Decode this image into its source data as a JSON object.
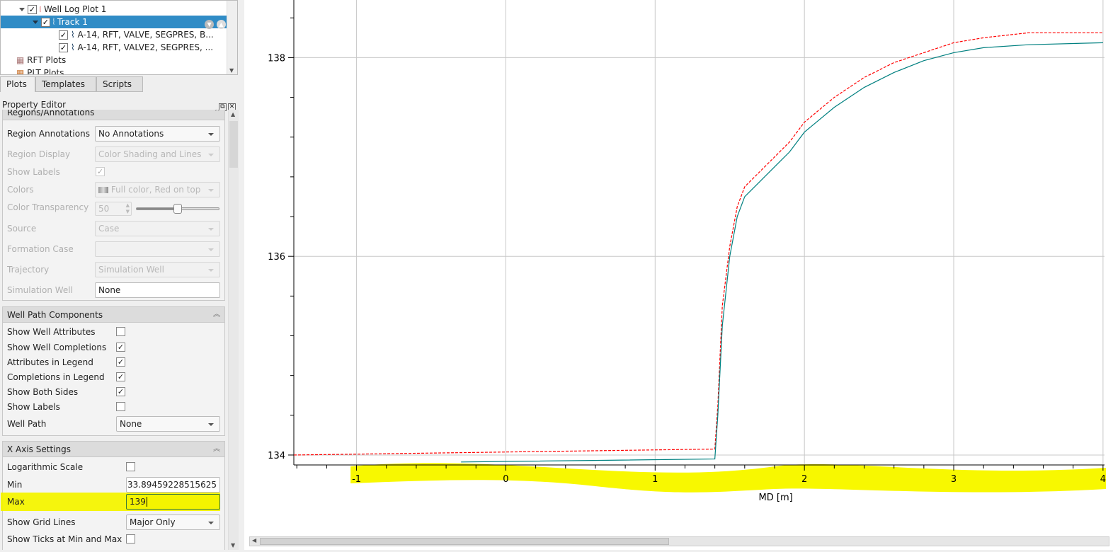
{
  "tree": {
    "items": [
      {
        "label": "Well Log Plot 1",
        "checked": true,
        "expanded": true,
        "icon": "well-log-plot-icon"
      },
      {
        "label": "Track 1",
        "checked": true,
        "expanded": true,
        "selected": true,
        "icon": "track-icon"
      },
      {
        "label": "A-14, RFT, VALVE, SEGPRES, B...",
        "checked": true,
        "icon": "curve-icon"
      },
      {
        "label": "A-14, RFT, VALVE2, SEGPRES, ...",
        "checked": true,
        "icon": "curve-icon"
      },
      {
        "label": "RFT Plots",
        "icon": "rft-plots-icon"
      },
      {
        "label": "PLT Plots",
        "icon": "plt-plots-icon"
      }
    ]
  },
  "tabs": [
    {
      "label": "Plots",
      "active": true
    },
    {
      "label": "Templates"
    },
    {
      "label": "Scripts"
    }
  ],
  "property_editor": {
    "title": "Property Editor",
    "regions": {
      "title": "Regions/Annotations",
      "region_annotations": {
        "label": "Region Annotations",
        "value": "No Annotations"
      },
      "region_display": {
        "label": "Region Display",
        "value": "Color Shading and Lines"
      },
      "show_labels": {
        "label": "Show Labels",
        "checked": true
      },
      "colors": {
        "label": "Colors",
        "value": "Full color, Red on top"
      },
      "color_transparency": {
        "label": "Color Transparency",
        "value": "50",
        "slider_percent": 50
      },
      "source": {
        "label": "Source",
        "value": "Case"
      },
      "formation_case": {
        "label": "Formation Case",
        "value": ""
      },
      "trajectory": {
        "label": "Trajectory",
        "value": "Simulation Well"
      },
      "simulation_well": {
        "label": "Simulation Well",
        "value": "None"
      }
    },
    "well_path": {
      "title": "Well Path Components",
      "rows": [
        {
          "label": "Show Well Attributes",
          "checked": false
        },
        {
          "label": "Show Well Completions",
          "checked": true
        },
        {
          "label": "Attributes in Legend",
          "checked": true
        },
        {
          "label": "Completions in Legend",
          "checked": true
        },
        {
          "label": "Show Both Sides",
          "checked": true
        },
        {
          "label": "Show Labels",
          "checked": false
        }
      ],
      "well_path": {
        "label": "Well Path",
        "value": "None"
      }
    },
    "x_axis": {
      "title": "X Axis Settings",
      "log_scale": {
        "label": "Logarithmic Scale",
        "checked": false
      },
      "min": {
        "label": "Min",
        "value": "33.89459228515625"
      },
      "max": {
        "label": "Max",
        "value": "139"
      },
      "grid": {
        "label": "Show Grid Lines",
        "value": "Major Only"
      },
      "ticks_minmax": {
        "label": "Show Ticks at Min and Max",
        "checked": false
      }
    }
  },
  "chart_data": {
    "type": "line",
    "xlabel": "MD [m]",
    "ylabel": "",
    "xlim": [
      -1.42,
      4.01
    ],
    "ylim": [
      133.9,
      138.58
    ],
    "xticks": [
      "-1",
      "0",
      "1",
      "2",
      "3",
      "4"
    ],
    "yticks": [
      "134",
      "136",
      "138"
    ],
    "grid": "major",
    "series": [
      {
        "color": "#ff0000",
        "style": "dashed",
        "points": [
          [
            -1.42,
            134.0
          ],
          [
            1.4,
            134.06
          ],
          [
            1.42,
            134.5
          ],
          [
            1.45,
            135.5
          ],
          [
            1.5,
            136.1
          ],
          [
            1.55,
            136.5
          ],
          [
            1.6,
            136.7
          ],
          [
            1.7,
            136.85
          ],
          [
            1.8,
            137.0
          ],
          [
            1.9,
            137.15
          ],
          [
            2.0,
            137.35
          ],
          [
            2.2,
            137.6
          ],
          [
            2.4,
            137.8
          ],
          [
            2.6,
            137.95
          ],
          [
            2.8,
            138.05
          ],
          [
            3.0,
            138.15
          ],
          [
            3.2,
            138.2
          ],
          [
            3.5,
            138.25
          ],
          [
            4.0,
            138.25
          ]
        ]
      },
      {
        "color": "#008080",
        "style": "solid",
        "points": [
          [
            -0.3,
            133.93
          ],
          [
            1.4,
            133.96
          ],
          [
            1.42,
            134.4
          ],
          [
            1.45,
            135.3
          ],
          [
            1.5,
            136.0
          ],
          [
            1.55,
            136.4
          ],
          [
            1.6,
            136.6
          ],
          [
            1.7,
            136.75
          ],
          [
            1.8,
            136.9
          ],
          [
            1.9,
            137.05
          ],
          [
            2.0,
            137.25
          ],
          [
            2.2,
            137.5
          ],
          [
            2.4,
            137.7
          ],
          [
            2.6,
            137.85
          ],
          [
            2.8,
            137.97
          ],
          [
            3.0,
            138.05
          ],
          [
            3.2,
            138.1
          ],
          [
            3.5,
            138.13
          ],
          [
            4.0,
            138.15
          ]
        ]
      }
    ]
  }
}
